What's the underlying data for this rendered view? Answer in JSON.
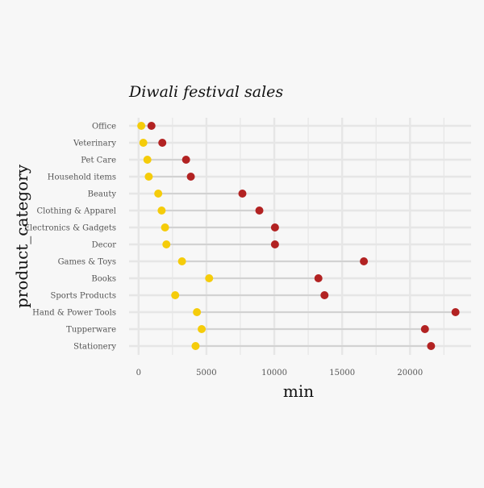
{
  "chart_data": {
    "type": "dumbbell",
    "title": "Diwali festival sales",
    "xlabel": "min",
    "ylabel": "product_category",
    "xlim": [
      -700,
      24500
    ],
    "x_ticks": [
      0,
      5000,
      10000,
      15000,
      20000
    ],
    "grid": true,
    "legend": "none",
    "colors": {
      "low": "#f5cc0a",
      "high": "#b22222",
      "segment": "#cccccc",
      "grid": "#e6e6e6",
      "background": "#f7f7f7"
    },
    "categories": [
      "Office",
      "Veterinary",
      "Pet Care",
      "Household items",
      "Beauty",
      "Clothing & Apparel",
      "Electronics & Gadgets",
      "Decor",
      "Games & Toys",
      "Books",
      "Sports Products",
      "Hand & Power Tools",
      "Tupperware",
      "Stationery"
    ],
    "low_values": [
      200,
      350,
      650,
      750,
      1450,
      1700,
      1950,
      2050,
      3200,
      5200,
      2700,
      4300,
      4650,
      4200
    ],
    "high_values": [
      950,
      1750,
      3500,
      3850,
      7650,
      8900,
      10050,
      10050,
      16600,
      13250,
      13700,
      23350,
      21100,
      21550
    ]
  }
}
